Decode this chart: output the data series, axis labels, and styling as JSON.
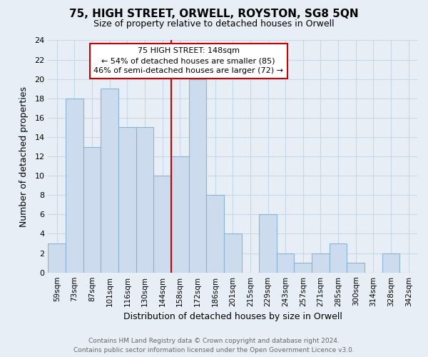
{
  "title": "75, HIGH STREET, ORWELL, ROYSTON, SG8 5QN",
  "subtitle": "Size of property relative to detached houses in Orwell",
  "xlabel": "Distribution of detached houses by size in Orwell",
  "ylabel": "Number of detached properties",
  "bar_labels": [
    "59sqm",
    "73sqm",
    "87sqm",
    "101sqm",
    "116sqm",
    "130sqm",
    "144sqm",
    "158sqm",
    "172sqm",
    "186sqm",
    "201sqm",
    "215sqm",
    "229sqm",
    "243sqm",
    "257sqm",
    "271sqm",
    "285sqm",
    "300sqm",
    "314sqm",
    "328sqm",
    "342sqm"
  ],
  "bar_values": [
    3,
    18,
    13,
    19,
    15,
    15,
    10,
    12,
    20,
    8,
    4,
    0,
    6,
    2,
    1,
    2,
    3,
    1,
    0,
    2,
    0
  ],
  "bar_color": "#ccdcee",
  "bar_edge_color": "#8ab4d4",
  "vline_color": "#cc0000",
  "ylim": [
    0,
    24
  ],
  "yticks": [
    0,
    2,
    4,
    6,
    8,
    10,
    12,
    14,
    16,
    18,
    20,
    22,
    24
  ],
  "annotation_text": "75 HIGH STREET: 148sqm\n← 54% of detached houses are smaller (85)\n46% of semi-detached houses are larger (72) →",
  "annotation_box_color": "#ffffff",
  "annotation_box_edge": "#cc0000",
  "footer_line1": "Contains HM Land Registry data © Crown copyright and database right 2024.",
  "footer_line2": "Contains public sector information licensed under the Open Government Licence v3.0.",
  "grid_color": "#c8d8e8",
  "background_color": "#e8eef5",
  "title_fontsize": 11,
  "subtitle_fontsize": 9,
  "ylabel_text": "Number of detached properties"
}
